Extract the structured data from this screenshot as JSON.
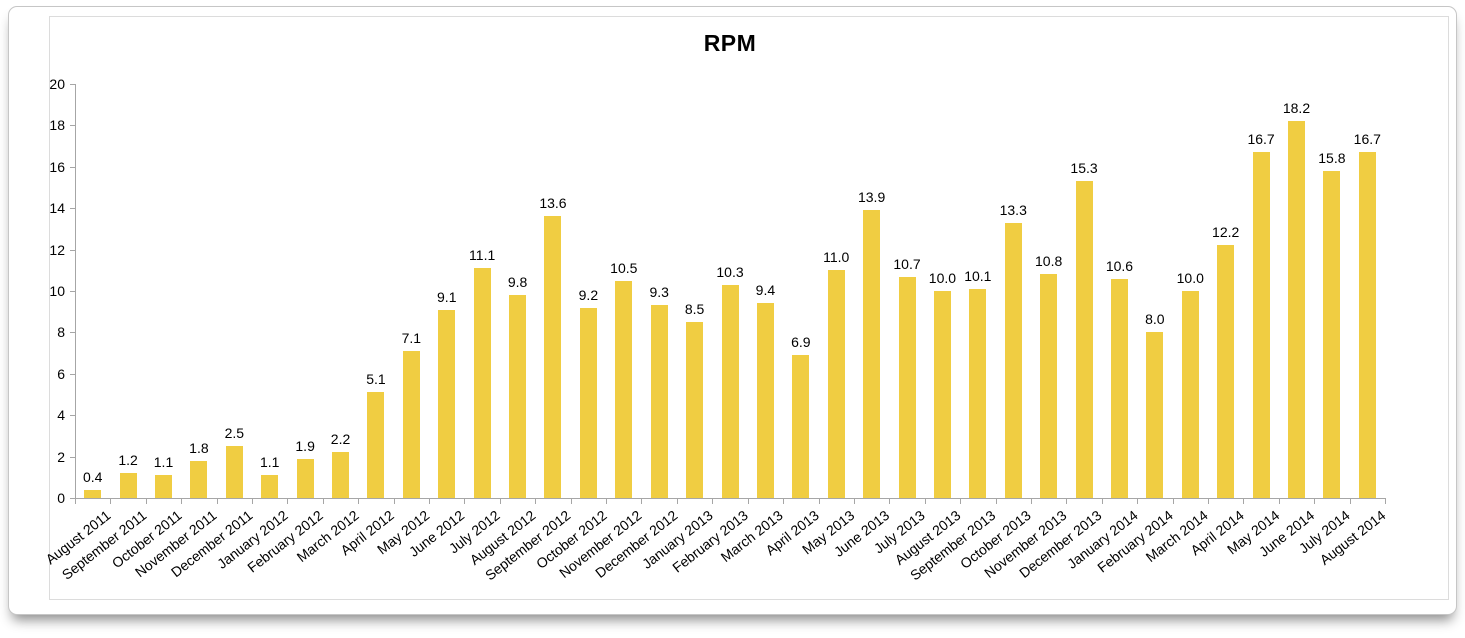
{
  "chart_data": {
    "type": "bar",
    "title": "RPM",
    "categories": [
      "August 2011",
      "September 2011",
      "October 2011",
      "November 2011",
      "December 2011",
      "January 2012",
      "February 2012",
      "March 2012",
      "April 2012",
      "May 2012",
      "June 2012",
      "July 2012",
      "August 2012",
      "September 2012",
      "October 2012",
      "November 2012",
      "December 2012",
      "January 2013",
      "February 2013",
      "March 2013",
      "April 2013",
      "May 2013",
      "June 2013",
      "July 2013",
      "August 2013",
      "September 2013",
      "October 2013",
      "November 2013",
      "December 2013",
      "January 2014",
      "February 2014",
      "March 2014",
      "April 2014",
      "May 2014",
      "June 2014",
      "July 2014",
      "August 2014"
    ],
    "values": [
      0.4,
      1.2,
      1.1,
      1.8,
      2.5,
      1.1,
      1.9,
      2.2,
      5.1,
      7.1,
      9.1,
      11.1,
      9.8,
      13.6,
      9.2,
      10.5,
      9.3,
      8.5,
      10.3,
      9.4,
      6.9,
      11.0,
      13.9,
      10.7,
      10.0,
      10.1,
      13.3,
      10.8,
      15.3,
      10.6,
      8.0,
      10.0,
      12.2,
      16.7,
      18.2,
      15.8,
      16.7
    ],
    "value_label_decimals": 1,
    "xlabel": "",
    "ylabel": "",
    "ylim": [
      0,
      20
    ],
    "y_ticks": [
      0,
      2,
      4,
      6,
      8,
      10,
      12,
      14,
      16,
      18,
      20
    ],
    "grid": false,
    "legend_position": "none",
    "bar_color": "#F0CD42",
    "axis_color": "#A6A6A6",
    "label_color": "#000000"
  }
}
